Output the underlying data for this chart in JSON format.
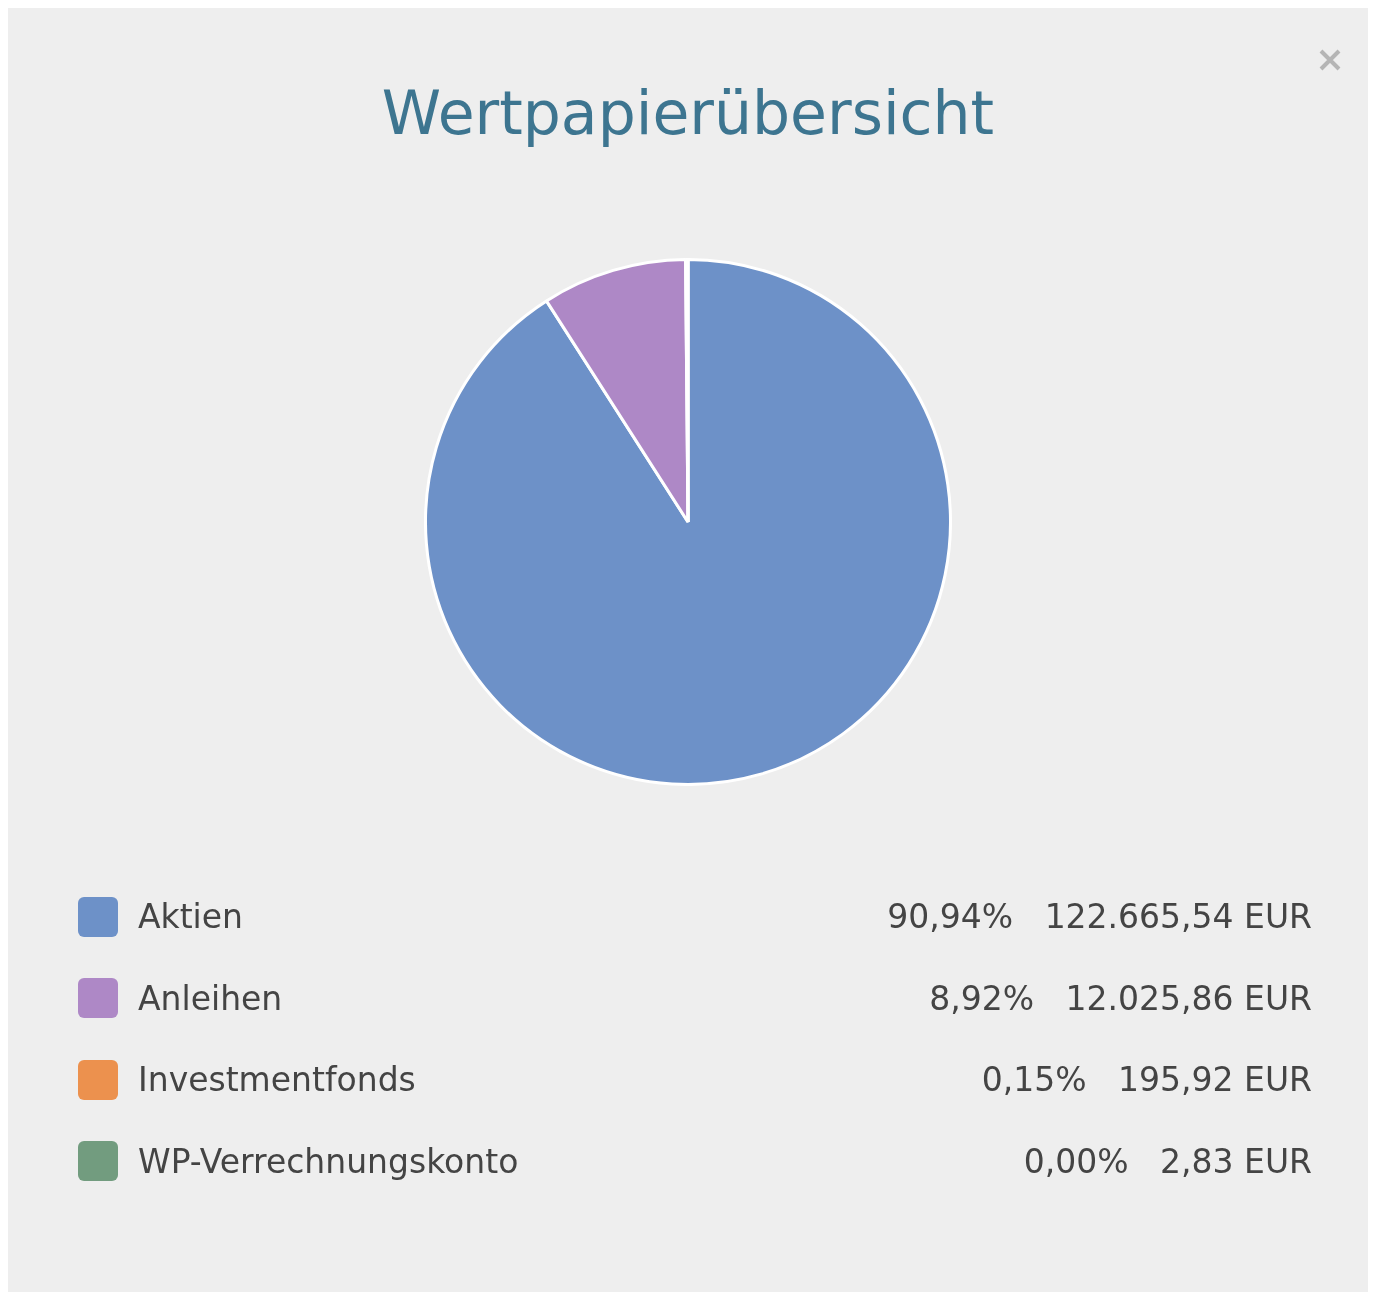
{
  "chart_data": {
    "type": "pie",
    "title": "Wertpapierübersicht",
    "categories": [
      "Aktien",
      "Anleihen",
      "Investmentfonds",
      "WP-Verrechnungskonto"
    ],
    "values": [
      122665.54,
      12025.86,
      195.92,
      2.83
    ],
    "colors": [
      "#6d91c8",
      "#ae88c6",
      "#ec914e",
      "#729c7f"
    ],
    "value_labels": [
      "90,94%   122.665,54 EUR",
      "8,92%   12.025,86 EUR",
      "0,15%   195,92 EUR",
      "0,00%   2,83 EUR"
    ],
    "legend": "bottom"
  }
}
